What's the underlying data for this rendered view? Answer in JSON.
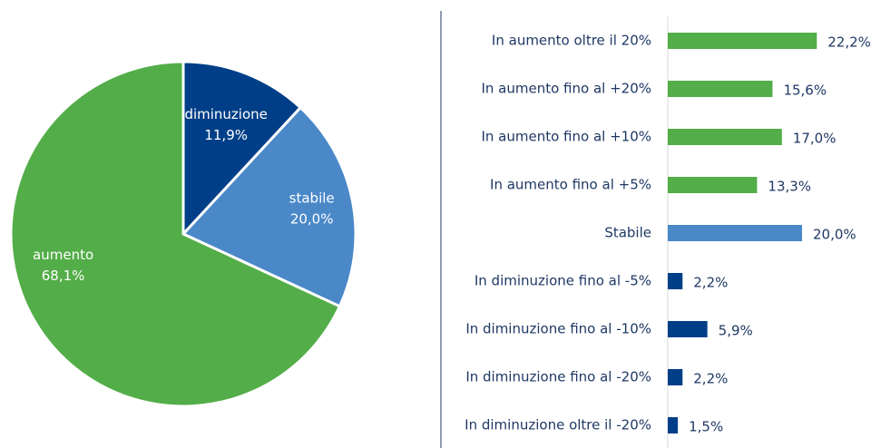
{
  "chart_data": [
    {
      "type": "pie",
      "categories": [
        "diminuzione",
        "stabile",
        "aumento"
      ],
      "values": [
        11.9,
        20.0,
        68.1
      ],
      "value_labels": [
        "11,9%",
        "20,0%",
        "68,1%"
      ],
      "colors": [
        "#003f87",
        "#4a88c8",
        "#53ad48"
      ]
    },
    {
      "type": "hbar",
      "categories": [
        "In aumento oltre il 20%",
        "In aumento fino al +20%",
        "In aumento fino al +10%",
        "In aumento fino al +5%",
        "Stabile",
        "In diminuzione fino al -5%",
        "In diminuzione fino al -10%",
        "In diminuzione fino al -20%",
        "In diminuzione oltre il -20%"
      ],
      "values": [
        22.2,
        15.6,
        17.0,
        13.3,
        20.0,
        2.2,
        5.9,
        2.2,
        1.5
      ],
      "value_labels": [
        "22,2%",
        "15,6%",
        "17,0%",
        "13,3%",
        "20,0%",
        "2,2%",
        "5,9%",
        "2,2%",
        "1,5%"
      ],
      "colors": [
        "#53ad48",
        "#53ad48",
        "#53ad48",
        "#53ad48",
        "#4a88c8",
        "#003f87",
        "#003f87",
        "#003f87",
        "#003f87"
      ],
      "xlim": [
        0,
        30
      ]
    }
  ]
}
